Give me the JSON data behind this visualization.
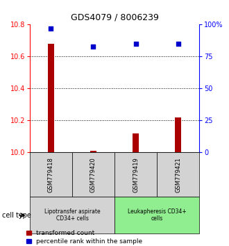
{
  "title": "GDS4079 / 8006239",
  "samples": [
    "GSM779418",
    "GSM779420",
    "GSM779419",
    "GSM779421"
  ],
  "red_values": [
    10.68,
    10.01,
    10.12,
    10.22
  ],
  "blue_values": [
    97,
    83,
    85,
    85
  ],
  "ylim_left": [
    10.0,
    10.8
  ],
  "ylim_right": [
    0,
    100
  ],
  "yticks_left": [
    10.0,
    10.2,
    10.4,
    10.6,
    10.8
  ],
  "yticks_right": [
    0,
    25,
    50,
    75,
    100
  ],
  "ytick_labels_right": [
    "0",
    "25",
    "50",
    "75",
    "100%"
  ],
  "cell_groups": [
    {
      "label": "Lipotransfer aspirate\nCD34+ cells",
      "start": 0,
      "end": 2,
      "color": "#d3d3d3"
    },
    {
      "label": "Leukapheresis CD34+\ncells",
      "start": 2,
      "end": 4,
      "color": "#90ee90"
    }
  ],
  "cell_type_label": "cell type",
  "legend_red": "transformed count",
  "legend_blue": "percentile rank within the sample",
  "bar_color": "#aa0000",
  "dot_color": "#0000cc",
  "background_color": "#ffffff",
  "sample_box_color": "#d3d3d3"
}
